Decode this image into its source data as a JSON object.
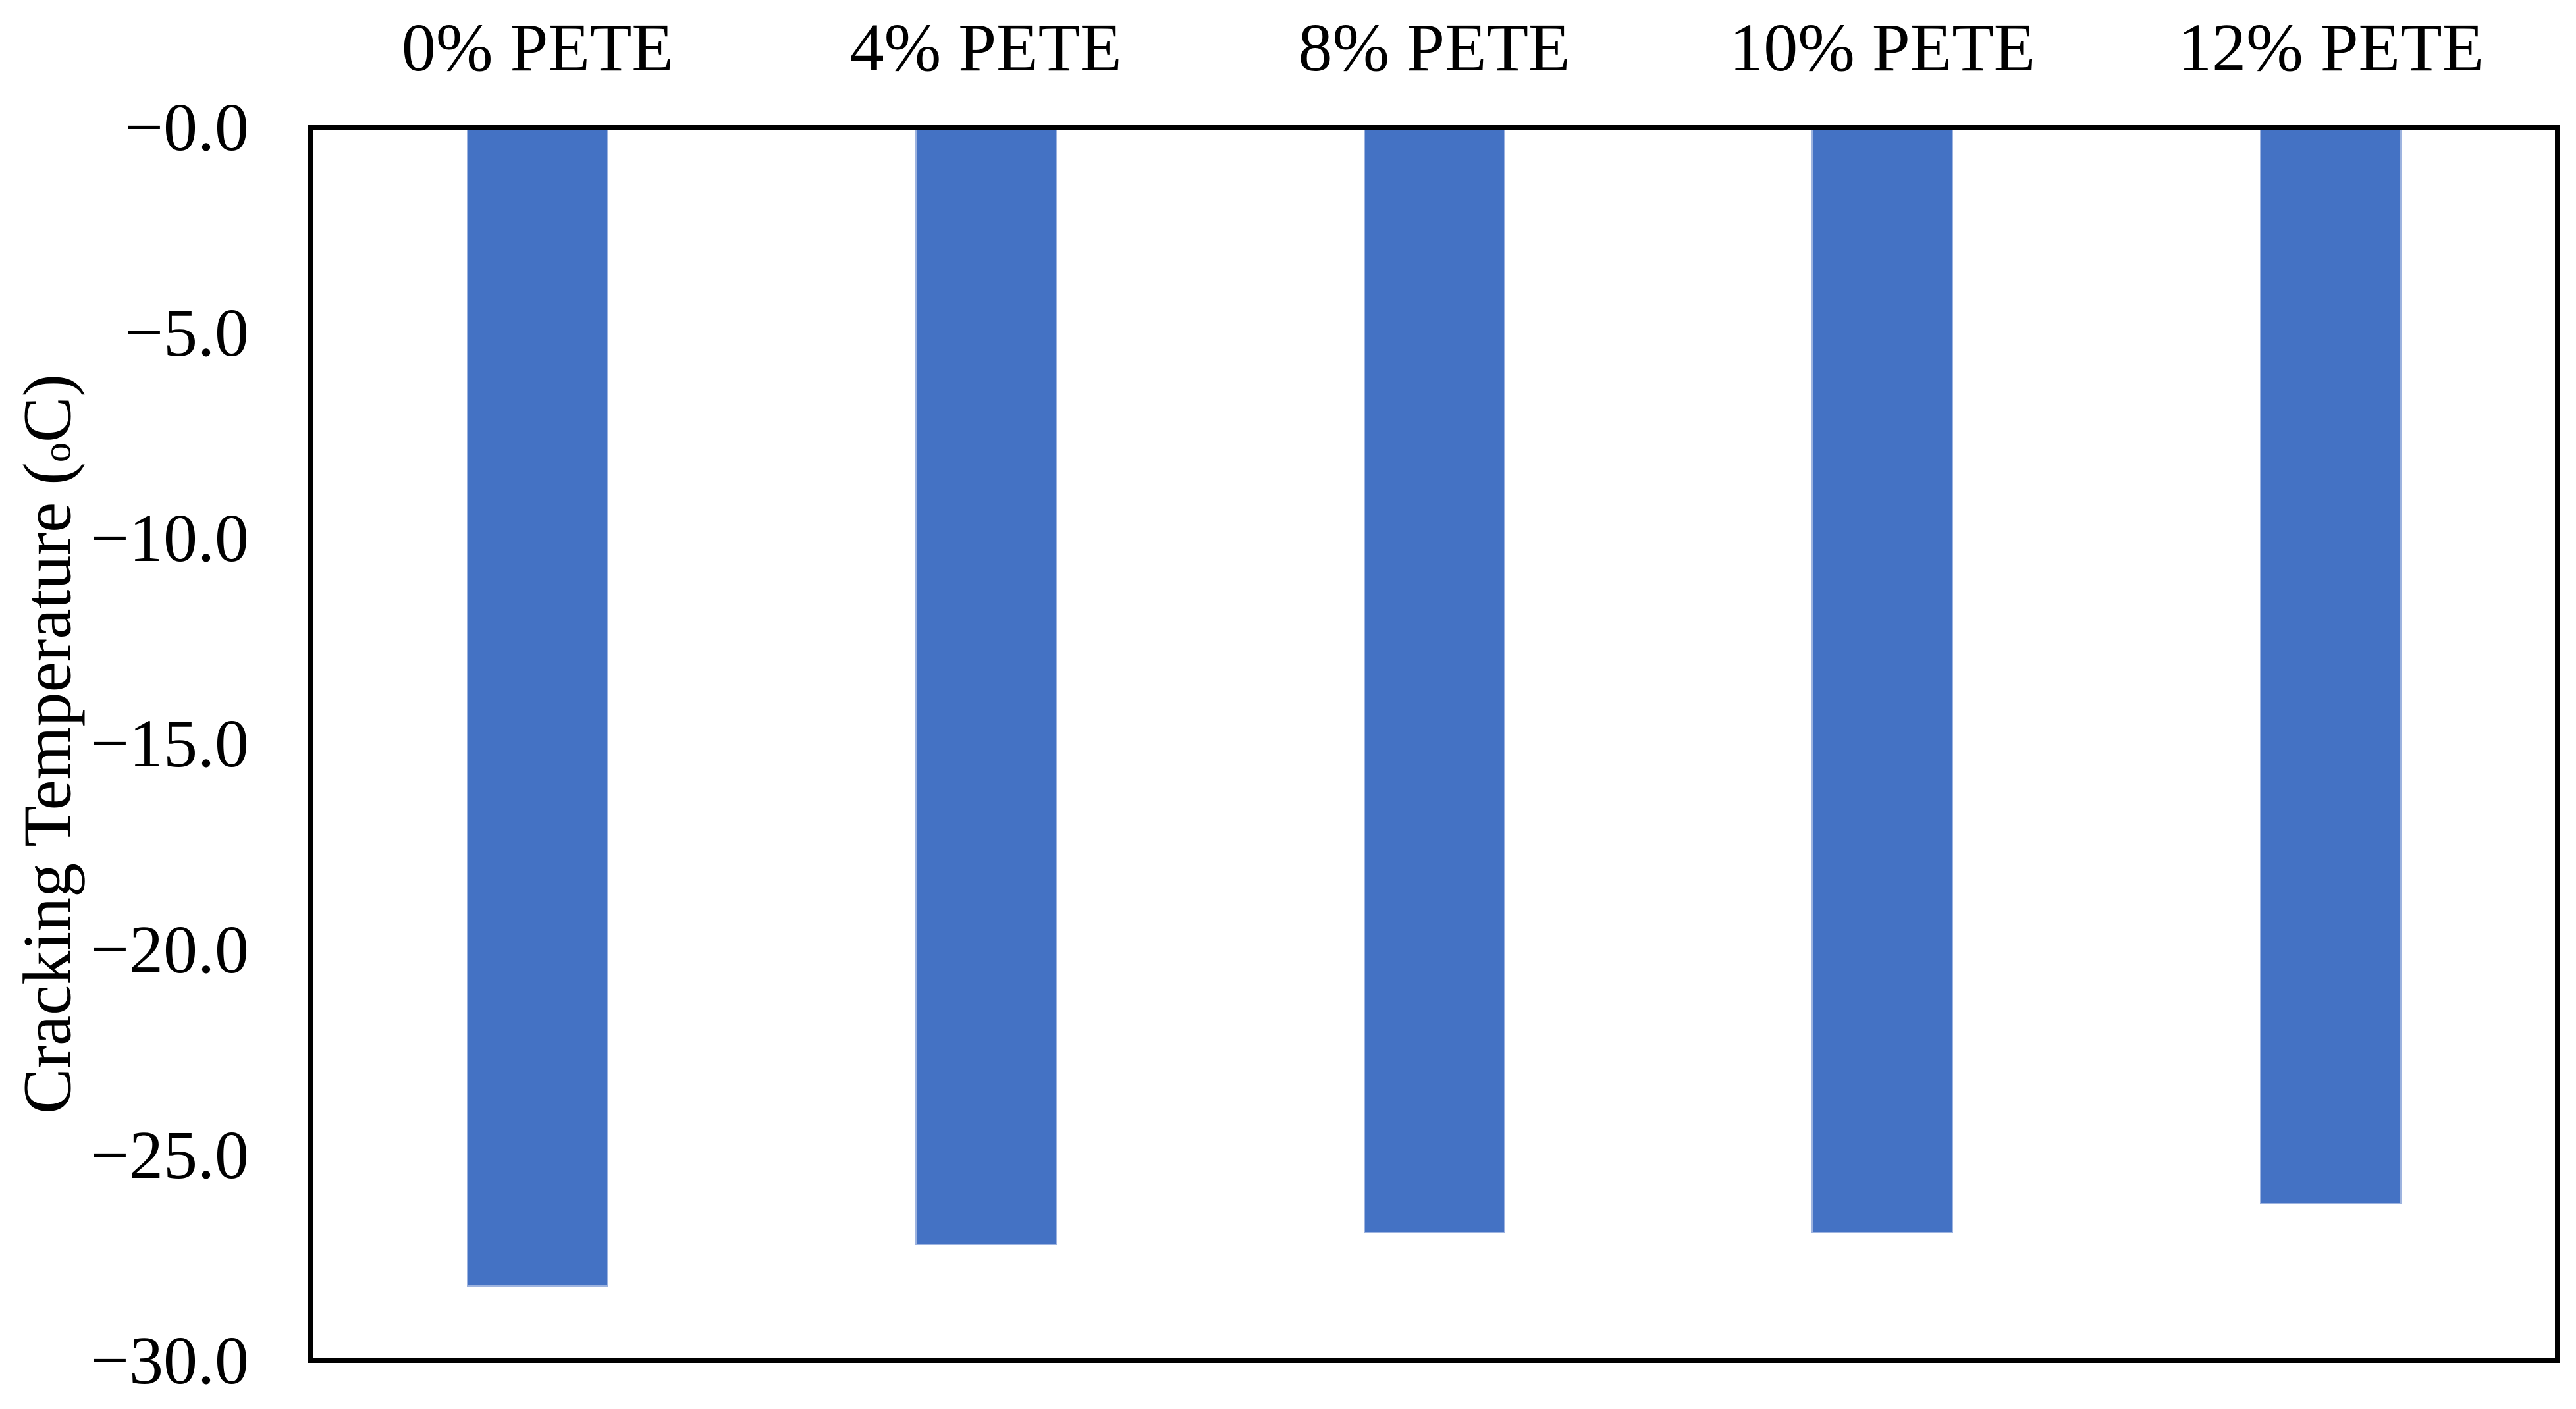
{
  "chart_data": {
    "type": "bar",
    "title": "",
    "categories": [
      "0% PETE",
      "4% PETE",
      "8% PETE",
      "10% PETE",
      "12% PETE"
    ],
    "values": [
      -28.2,
      -27.2,
      -26.9,
      -26.9,
      -26.2
    ],
    "series_name": "Cracking Temperature",
    "xlabel": "",
    "ylabel": "Cracking Temperature (oC)",
    "ylabel_parts": {
      "prefix": "Cracking Temperature (",
      "sup": "o",
      "suffix": "C)"
    },
    "ylim": [
      -30,
      0
    ],
    "ytick_labels": [
      "−0.0",
      "−5.0",
      "−10.0",
      "−15.0",
      "−20.0",
      "−25.0",
      "−30.0"
    ],
    "ytick_values": [
      0,
      -5,
      -10,
      -15,
      -20,
      -25,
      -30
    ],
    "grid": false,
    "legend_position": "none",
    "bar_color": "#4472C4",
    "axis_color": "#000000",
    "background_color": "#ffffff"
  }
}
